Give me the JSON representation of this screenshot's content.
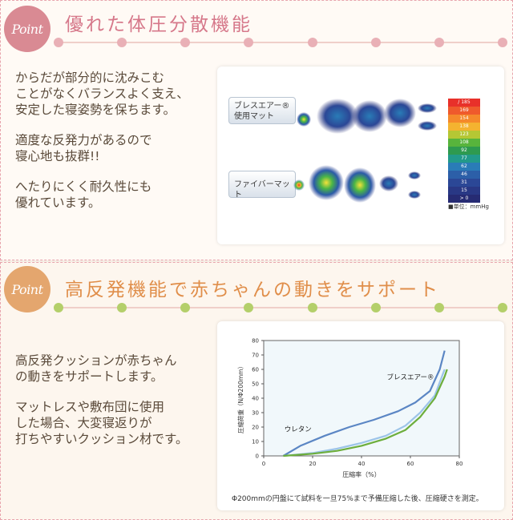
{
  "section1": {
    "badge": "Point",
    "heading": "優れた体圧分散機能",
    "paragraphs": [
      [
        "からだが部分的に沈みこむ",
        "ことがなくバランスよく支え、",
        "安定した寝姿勢を保ちます。"
      ],
      [
        "適度な反発力があるので",
        "寝心地も抜群!!"
      ],
      [
        "へたりにくく耐久性にも",
        "優れています。"
      ]
    ],
    "figure": {
      "mat1_label_line1": "ブレスエアー®",
      "mat1_label_line2": "使用マット",
      "mat2_label": "ファイバーマット",
      "legend": [
        {
          "label": "/ 185",
          "color": "#e8302a"
        },
        {
          "label": "169",
          "color": "#ef5a2c"
        },
        {
          "label": "154",
          "color": "#f5892b"
        },
        {
          "label": "138",
          "color": "#f4b330"
        },
        {
          "label": "123",
          "color": "#b5c734"
        },
        {
          "label": "108",
          "color": "#58b43c"
        },
        {
          "label": "92",
          "color": "#2e9a4f"
        },
        {
          "label": "77",
          "color": "#229a8a"
        },
        {
          "label": "62",
          "color": "#2a7cb7"
        },
        {
          "label": "46",
          "color": "#2c5fa8"
        },
        {
          "label": "31",
          "color": "#2b4796"
        },
        {
          "label": "15",
          "color": "#293885"
        },
        {
          "label": "> 0",
          "color": "#262b73"
        }
      ],
      "unit_note": "■単位：mmHg"
    }
  },
  "section2": {
    "badge": "Point",
    "heading": "高反発機能で赤ちゃんの動きをサポート",
    "paragraphs": [
      [
        "高反発クッションが赤ちゃん",
        "の動きをサポートします。"
      ],
      [
        "マットレスや敷布団に使用",
        "した場合、大変寝返りが",
        "打ちやすいクッション材です。"
      ]
    ],
    "note": "Φ200mmの円盤にて試料を一旦75%まで予備圧縮した後、圧縮硬さを測定。"
  },
  "chart_data": {
    "type": "line",
    "xlabel": "圧縮率（%）",
    "ylabel": "圧縮荷重（N/Φ200mm）",
    "xlim": [
      0,
      80
    ],
    "ylim": [
      0,
      80
    ],
    "xticks": [
      "0",
      "20",
      "40",
      "60",
      "80"
    ],
    "yticks": [
      "0",
      "10",
      "20",
      "30",
      "40",
      "50",
      "60",
      "70",
      "80"
    ],
    "grid": false,
    "annotations": [
      "ブレスエアー®",
      "ウレタン"
    ],
    "series": [
      {
        "name": "ブレスエアー®",
        "color": "#5b86c4",
        "x": [
          8,
          15,
          25,
          35,
          45,
          55,
          62,
          68,
          72,
          74
        ],
        "y": [
          0,
          7,
          14,
          20,
          25,
          31,
          37,
          45,
          60,
          73
        ]
      },
      {
        "color": "#9cc4e8",
        "x": [
          8,
          20,
          30,
          40,
          50,
          58,
          64,
          70,
          74
        ],
        "y": [
          0,
          2,
          5,
          9,
          14,
          21,
          30,
          42,
          60
        ]
      },
      {
        "name": "ウレタン",
        "color": "#6dae3c",
        "x": [
          8,
          20,
          30,
          40,
          50,
          58,
          64,
          70,
          74,
          75
        ],
        "y": [
          0,
          1.5,
          3.5,
          7,
          12,
          18,
          27,
          40,
          55,
          60
        ]
      }
    ]
  }
}
